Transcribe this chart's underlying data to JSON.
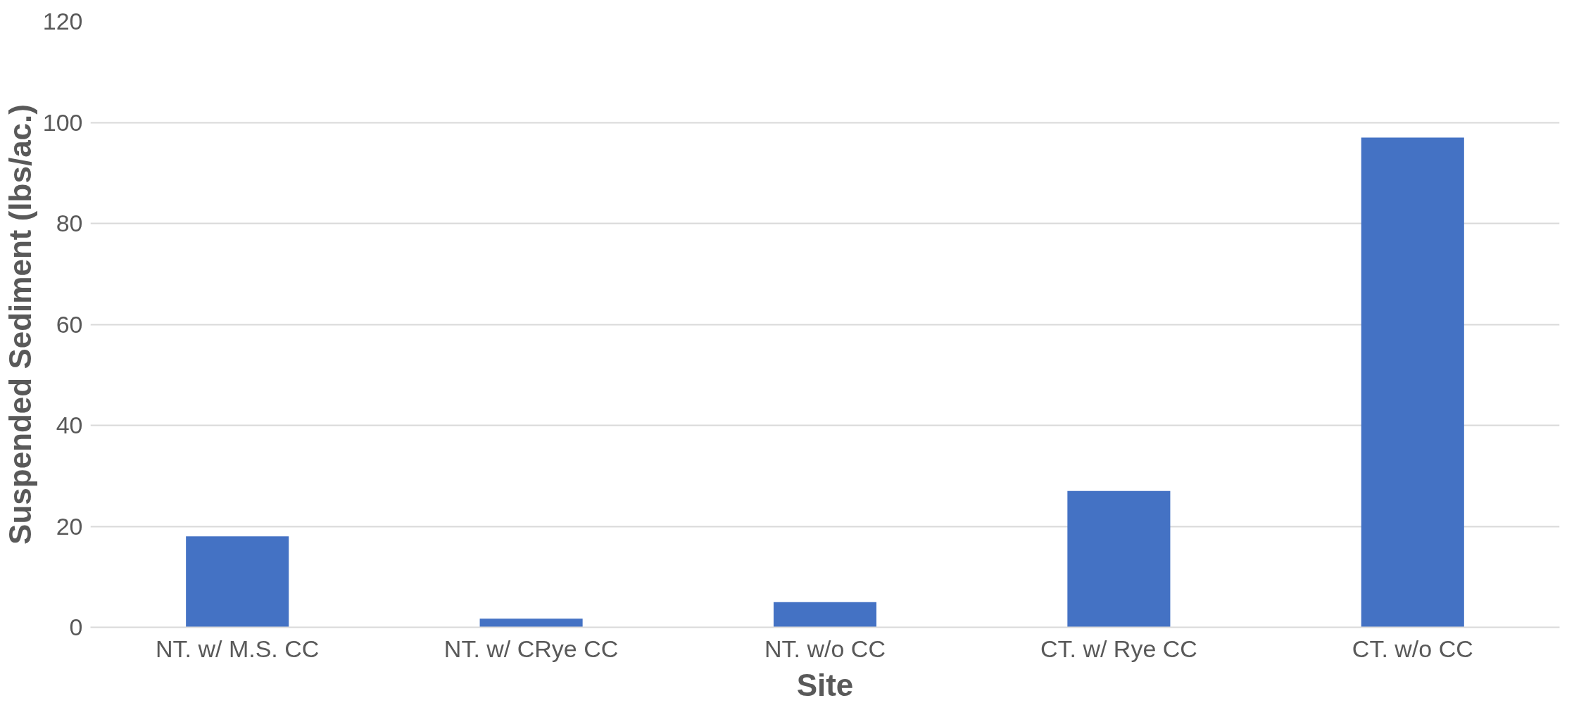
{
  "chart_data": {
    "type": "bar",
    "xlabel": "Site",
    "ylabel": "Suspended Sediment (lbs/ac.)",
    "categories": [
      "NT. w/ M.S. CC",
      "NT. w/ CRye CC",
      "NT. w/o CC",
      "CT. w/ Rye CC",
      "CT. w/o CC"
    ],
    "values": [
      18,
      1.7,
      5,
      27,
      97
    ],
    "color": "#4472c4",
    "ylim": [
      0,
      120
    ],
    "yticks": [
      0,
      20,
      40,
      60,
      80,
      100,
      120
    ],
    "grid": "y"
  }
}
